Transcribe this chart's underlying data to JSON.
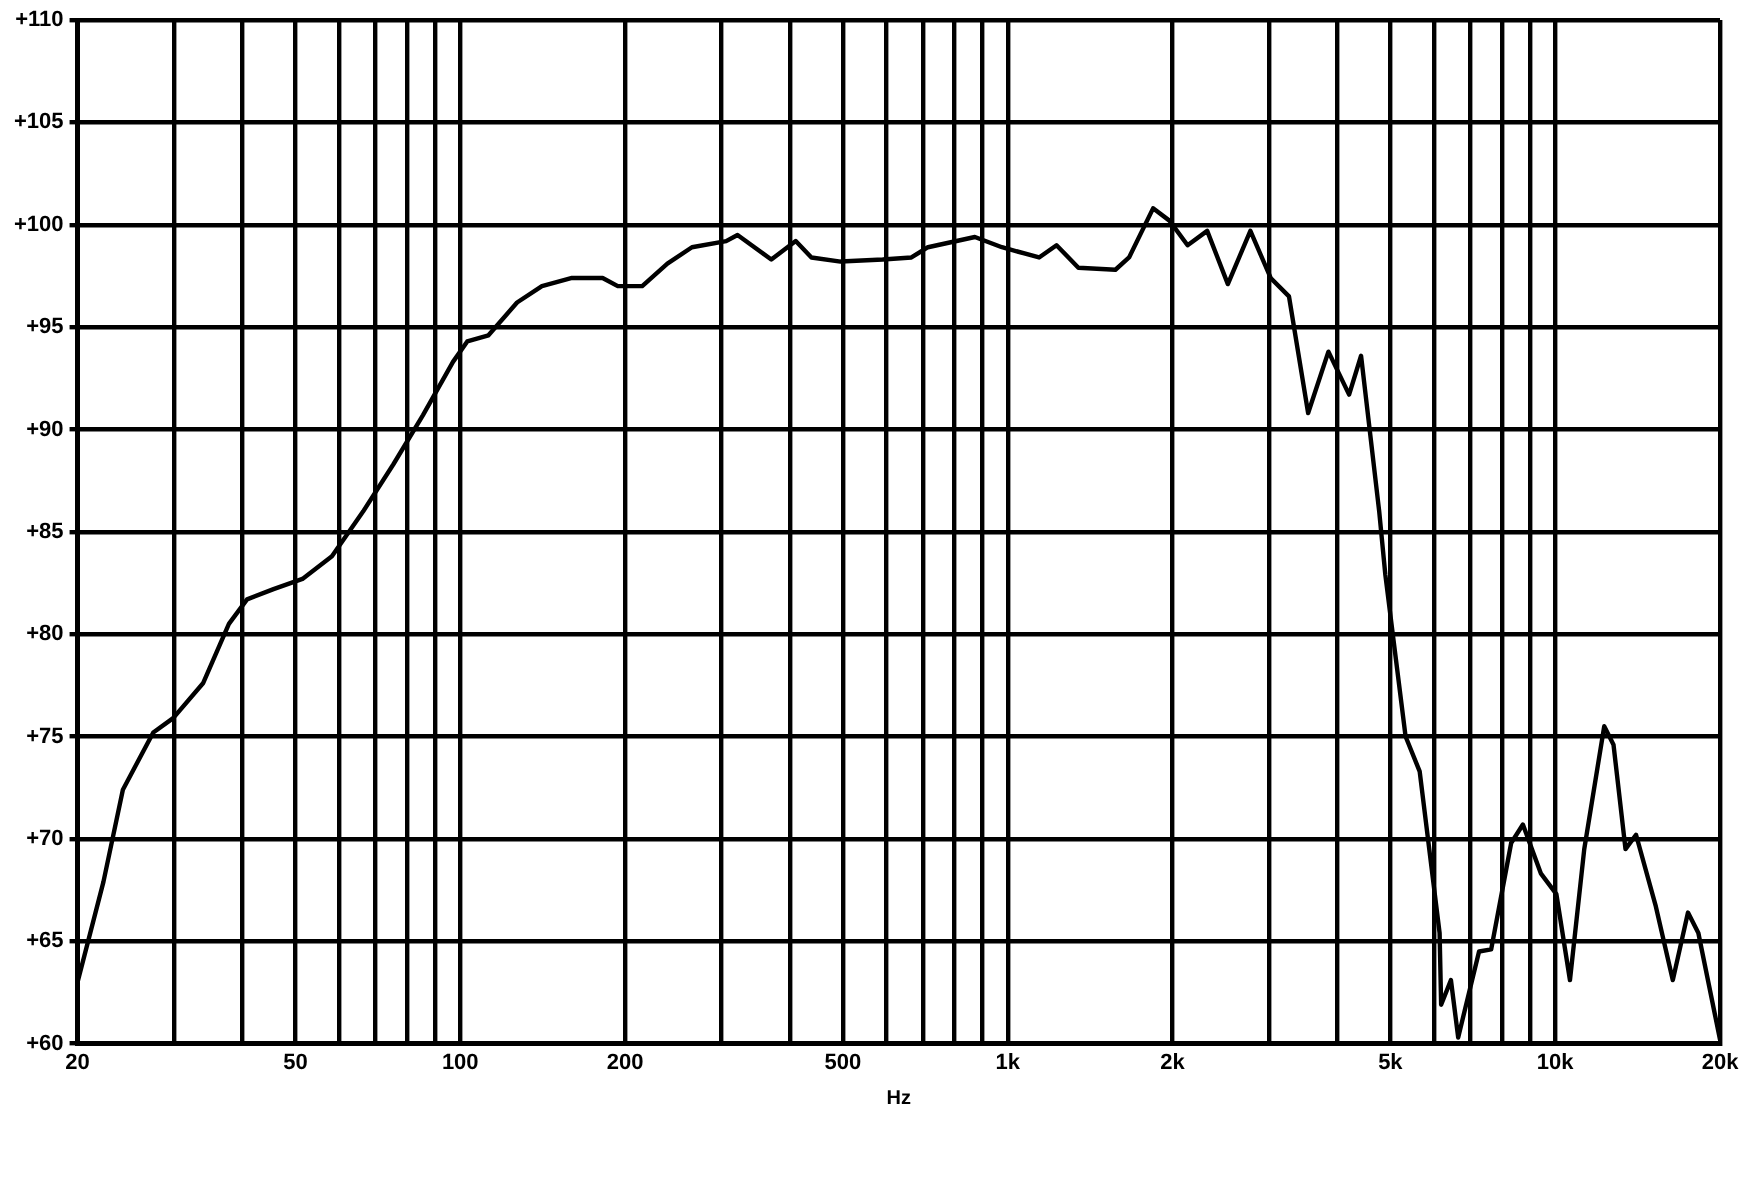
{
  "chart_data": {
    "type": "line",
    "xlabel": "Hz",
    "log": "x",
    "grid": true,
    "legend": false,
    "marker": "none",
    "line_style": "solid",
    "xlim": [
      20,
      20000
    ],
    "ylim": [
      60,
      110
    ],
    "xticks": [
      20,
      {
        "value": 30,
        "label": null
      },
      {
        "value": 40,
        "label": null
      },
      50,
      {
        "value": 60,
        "label": null
      },
      {
        "value": 70,
        "label": null
      },
      {
        "value": 80,
        "label": null
      },
      {
        "value": 90,
        "label": null
      },
      100,
      200,
      {
        "value": 300,
        "label": null
      },
      {
        "value": 400,
        "label": null
      },
      500,
      {
        "value": 600,
        "label": null
      },
      {
        "value": 700,
        "label": null
      },
      {
        "value": 800,
        "label": null
      },
      {
        "value": 900,
        "label": null
      },
      {
        "value": 1000,
        "label": "1k"
      },
      {
        "value": 2000,
        "label": "2k"
      },
      {
        "value": 3000,
        "label": null
      },
      {
        "value": 4000,
        "label": null
      },
      {
        "value": 5000,
        "label": "5k"
      },
      {
        "value": 6000,
        "label": null
      },
      {
        "value": 7000,
        "label": null
      },
      {
        "value": 8000,
        "label": null
      },
      {
        "value": 9000,
        "label": null
      },
      {
        "value": 10000,
        "label": "10k"
      },
      {
        "value": 20000,
        "label": "20k"
      }
    ],
    "yticks": [
      {
        "value": 60,
        "label": "+60"
      },
      {
        "value": 65,
        "label": "+65"
      },
      {
        "value": 70,
        "label": "+70"
      },
      {
        "value": 75,
        "label": "+75"
      },
      {
        "value": 80,
        "label": "+80"
      },
      {
        "value": 85,
        "label": "+85"
      },
      {
        "value": 90,
        "label": "+90"
      },
      {
        "value": 95,
        "label": "+95"
      },
      {
        "value": 100,
        "label": "+100"
      },
      {
        "value": 105,
        "label": "+105"
      },
      {
        "value": 110,
        "label": "+110"
      }
    ],
    "x": [
      20,
      22.3,
      24.2,
      27.5,
      29.9,
      33.9,
      37.8,
      40.8,
      45.6,
      51.5,
      58.3,
      66.5,
      75.5,
      85.5,
      97,
      103,
      112.6,
      127,
      141,
      160,
      182,
      194,
      215,
      239,
      265,
      306,
      321,
      370,
      410,
      438,
      495,
      591,
      667,
      715,
      871,
      976,
      1141,
      1228,
      1346,
      1573,
      1666,
      1843,
      1974,
      2131,
      2314,
      2524,
      2775,
      3022,
      3264,
      3538,
      3853,
      4203,
      4420,
      4770,
      4895,
      5330,
      5655,
      6150,
      6190,
      6450,
      6650,
      7260,
      7640,
      8310,
      8730,
      9420,
      10050,
      10640,
      11300,
      12290,
      12780,
      13440,
      14050,
      15270,
      16400,
      17480,
      18260,
      20000
    ],
    "series": [
      {
        "color": "#000000",
        "values": [
          63.0,
          67.9,
          72.4,
          75.2,
          75.9,
          77.6,
          80.5,
          81.7,
          82.2,
          82.7,
          83.8,
          86.0,
          88.3,
          90.7,
          93.3,
          94.3,
          94.6,
          96.2,
          97.0,
          97.4,
          97.4,
          97.0,
          97.0,
          98.1,
          98.9,
          99.2,
          99.5,
          98.3,
          99.2,
          98.4,
          98.2,
          98.3,
          98.4,
          98.9,
          99.4,
          98.9,
          98.4,
          99.0,
          97.9,
          97.8,
          98.4,
          100.8,
          100.2,
          99.0,
          99.7,
          97.1,
          99.7,
          97.4,
          96.5,
          90.8,
          93.8,
          91.7,
          93.6,
          86.0,
          82.9,
          75.0,
          73.3,
          65.4,
          61.9,
          63.1,
          60.3,
          64.5,
          64.6,
          69.8,
          70.7,
          68.3,
          67.3,
          63.1,
          69.5,
          75.5,
          74.6,
          69.5,
          70.2,
          66.7,
          63.1,
          66.4,
          65.4,
          60.2
        ]
      }
    ]
  }
}
